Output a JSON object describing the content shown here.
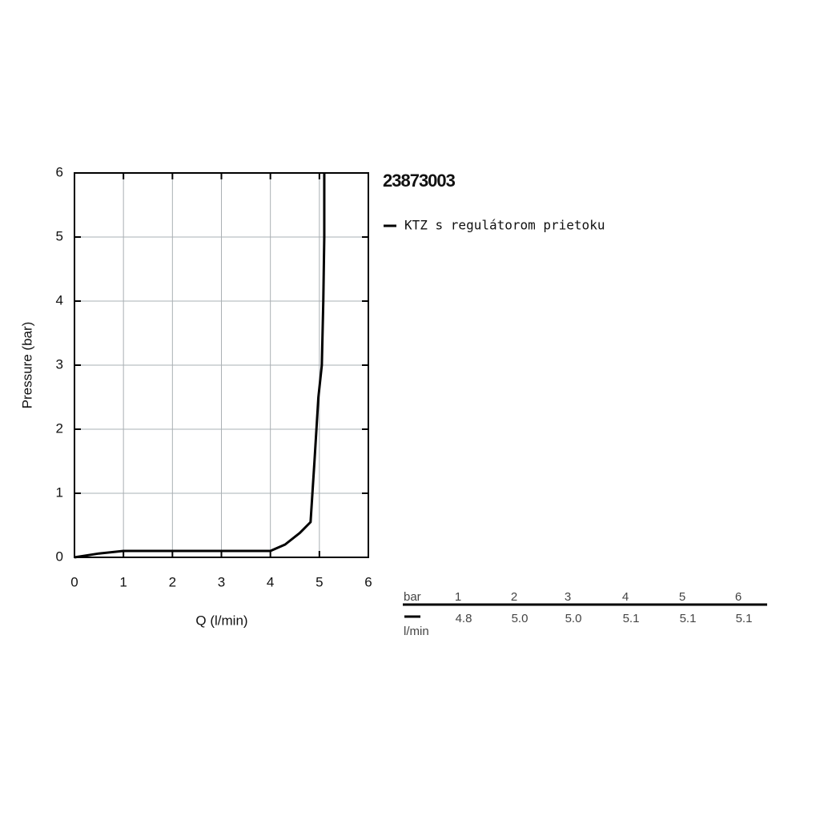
{
  "chart_data": {
    "type": "line",
    "title": "23873003",
    "x_label": "Q (l/min)",
    "y_label": "Pressure (bar)",
    "x": [
      0,
      0.5,
      1,
      2,
      3,
      4,
      4.3,
      4.6,
      4.82,
      4.9,
      4.98,
      5.05,
      5.08,
      5.1,
      5.1
    ],
    "series": [
      {
        "name": "KTZ s regulátorom prietoku",
        "color": "#000000",
        "values": [
          0,
          0.06,
          0.1,
          0.1,
          0.1,
          0.1,
          0.2,
          0.38,
          0.55,
          1.5,
          2.5,
          3,
          4,
          5,
          6
        ]
      }
    ],
    "xlim": [
      0,
      6
    ],
    "ylim": [
      0,
      6
    ],
    "xticks": [
      0,
      1,
      2,
      3,
      4,
      5,
      6
    ],
    "yticks": [
      0,
      1,
      2,
      3,
      4,
      5,
      6
    ],
    "grid": true
  },
  "table": {
    "header": [
      "bar",
      "1",
      "2",
      "3",
      "4",
      "5",
      "6"
    ],
    "row_label": "l/min",
    "values": [
      "4.8",
      "5.0",
      "5.0",
      "5.1",
      "5.1",
      "5.1"
    ]
  }
}
